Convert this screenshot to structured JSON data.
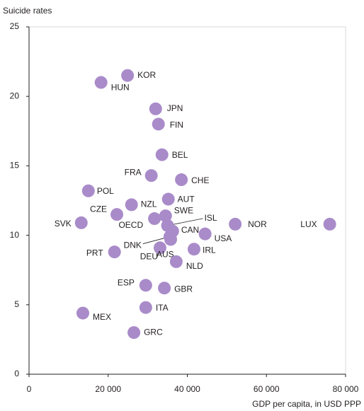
{
  "chart_data": {
    "type": "scatter",
    "y_label": "Suicide rates",
    "x_label": "GDP per capita, in USD PPP",
    "labels": [
      "KOR",
      "HUN",
      "JPN",
      "FIN",
      "BEL",
      "FRA",
      "CHE",
      "POL",
      "AUT",
      "NZL",
      "CZE",
      "SWE",
      "SVK",
      "OECD",
      "ISL",
      "NOR",
      "LUX",
      "CAN",
      "USA",
      "DNK",
      "AUS",
      "IRL",
      "PRT",
      "DEU",
      "NLD",
      "ESP",
      "GBR",
      "ITA",
      "MEX",
      "GRC"
    ],
    "x": [
      24900,
      18200,
      32000,
      32700,
      33600,
      30900,
      38500,
      15000,
      35200,
      25900,
      22200,
      34500,
      13200,
      31700,
      35000,
      52100,
      76000,
      36300,
      44500,
      35600,
      33100,
      41700,
      21600,
      35800,
      37200,
      29500,
      34200,
      29500,
      13600,
      26500
    ],
    "values": [
      21.5,
      21.0,
      19.1,
      18.0,
      15.8,
      14.3,
      14.0,
      13.2,
      12.6,
      12.2,
      11.5,
      11.4,
      10.9,
      11.2,
      10.7,
      10.8,
      10.8,
      10.3,
      10.1,
      9.9,
      9.1,
      9.0,
      8.8,
      9.7,
      8.1,
      6.4,
      6.2,
      4.8,
      4.4,
      3.0
    ],
    "color": "#a98bc9",
    "xlim": [
      0,
      80000
    ],
    "ylim": [
      0,
      25
    ],
    "xticks": [
      0,
      {
        "value": 20000,
        "label": "20 000"
      },
      {
        "value": 40000,
        "label": "40 000"
      },
      {
        "value": 60000,
        "label": "60 000"
      },
      {
        "value": 80000,
        "label": "80 000"
      }
    ],
    "yticks": [
      0,
      5,
      10,
      15,
      20,
      25
    ]
  }
}
